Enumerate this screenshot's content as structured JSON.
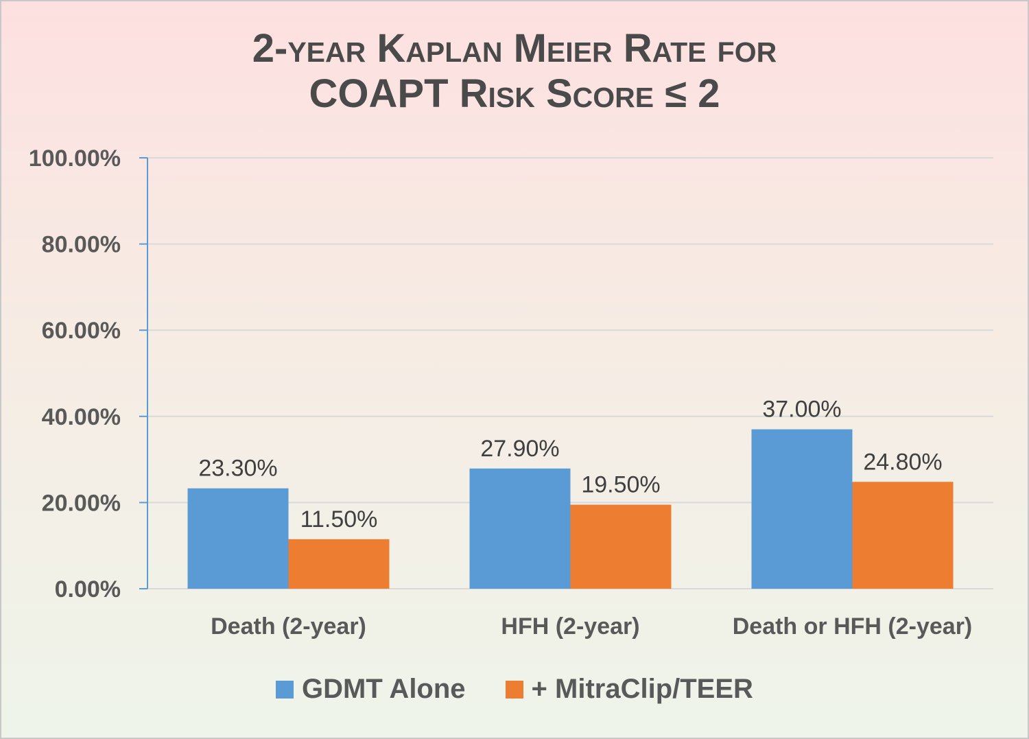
{
  "chart_data": {
    "type": "bar",
    "title_line1": "2-year Kaplan Meier Rate for",
    "title_line2": "COAPT Risk Score ≤ 2",
    "categories": [
      "Death (2-year)",
      "HFH (2-year)",
      "Death or HFH (2-year)"
    ],
    "series": [
      {
        "name": "GDMT Alone",
        "color": "#5b9bd5",
        "values": [
          23.3,
          27.9,
          37.0
        ],
        "labels": [
          "23.30%",
          "27.90%",
          "37.00%"
        ]
      },
      {
        "name": "+ MitraClip/TEER",
        "color": "#ed7d31",
        "values": [
          11.5,
          19.5,
          24.8
        ],
        "labels": [
          "11.50%",
          "19.50%",
          "24.80%"
        ]
      }
    ],
    "ylim": [
      0,
      100
    ],
    "yticks": [
      0,
      20,
      40,
      60,
      80,
      100
    ],
    "ytick_labels": [
      "0.00%",
      "20.00%",
      "40.00%",
      "60.00%",
      "80.00%",
      "100.00%"
    ],
    "grid": true,
    "legend_position": "bottom"
  }
}
